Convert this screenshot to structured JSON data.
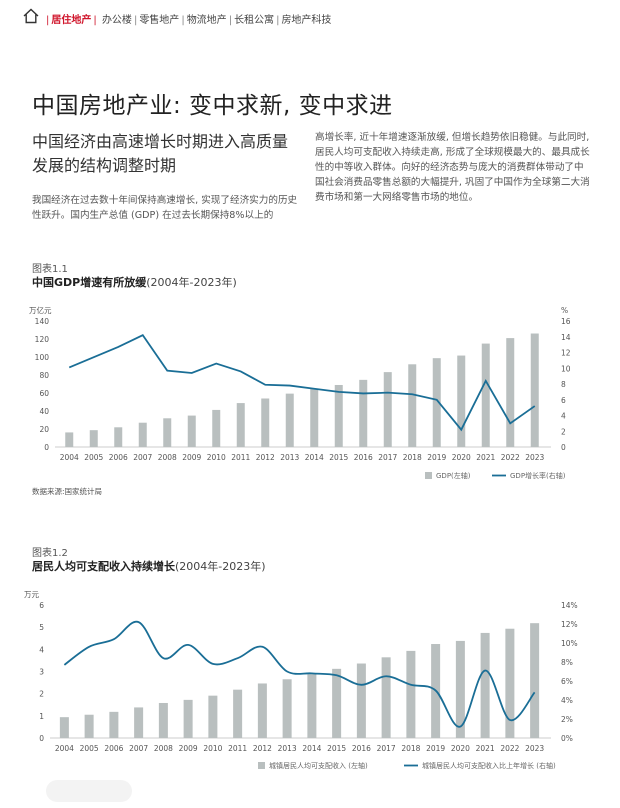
{
  "header": {
    "active": "居住地产",
    "items": [
      "办公楼",
      "零售地产",
      "物流地产",
      "长租公寓",
      "房地产科技"
    ]
  },
  "page": {
    "title": "中国房地产业: 变中求新, 变中求进",
    "subtitle": "中国经济由高速增长时期进入高质量发展的结构调整时期",
    "para1": "我国经济在过去数十年间保持高速增长, 实现了经济实力的历史性跃升。国内生产总值 (GDP) 在过去长期保持8%以上的",
    "para2": "高增长率, 近十年增速逐渐放缓, 但增长趋势依旧稳健。与此同时, 居民人均可支配收入持续走高, 形成了全球规模最大的、最具成长性的中等收入群体。向好的经济态势与庞大的消费群体带动了中国社会消费品零售总额的大幅提升, 巩固了中国作为全球第二大消费市场和第一大网络零售市场的地位。"
  },
  "fig1": {
    "label": "图表1.1",
    "title_bold": "中国GDP增速有所放缓",
    "title_range": "(2004年-2023年)",
    "source": "数据来源:国家统计局"
  },
  "fig2": {
    "label": "图表1.2",
    "title_bold": "居民人均可支配收入持续增长",
    "title_range": "(2004年-2023年)"
  },
  "colors": {
    "bar": "#b9bfbf",
    "line": "#1a6e96",
    "accent": "#d0162c"
  },
  "chart_data": [
    {
      "type": "bar+line",
      "categories": [
        "2004",
        "2005",
        "2006",
        "2007",
        "2008",
        "2009",
        "2010",
        "2011",
        "2012",
        "2013",
        "2014",
        "2015",
        "2016",
        "2017",
        "2018",
        "2019",
        "2020",
        "2021",
        "2022",
        "2023"
      ],
      "series": [
        {
          "name": "GDP(左轴)",
          "type": "bar",
          "axis": "left",
          "values": [
            16.2,
            18.7,
            21.9,
            27.0,
            31.9,
            34.9,
            41.2,
            48.8,
            53.9,
            59.3,
            64.4,
            68.9,
            74.6,
            83.2,
            91.9,
            98.7,
            101.6,
            114.9,
            121.0,
            126.1
          ]
        },
        {
          "name": "GDP增长率(右轴)",
          "type": "line",
          "axis": "right",
          "values": [
            10.1,
            11.4,
            12.7,
            14.2,
            9.7,
            9.4,
            10.6,
            9.6,
            7.9,
            7.8,
            7.4,
            7.0,
            6.8,
            6.9,
            6.7,
            6.0,
            2.2,
            8.4,
            3.0,
            5.2
          ]
        }
      ],
      "left_axis": {
        "label": "万亿元",
        "ylim": [
          0,
          140
        ],
        "ticks": [
          "0",
          "20",
          "40",
          "60",
          "80",
          "100",
          "120",
          "140"
        ]
      },
      "right_axis": {
        "label": "%",
        "ylim": [
          0,
          16
        ],
        "ticks": [
          "0",
          "2",
          "4",
          "6",
          "8",
          "10",
          "12",
          "14",
          "16"
        ]
      },
      "grid": false,
      "legend_position": "bottom-right"
    },
    {
      "type": "bar+line",
      "categories": [
        "2004",
        "2005",
        "2006",
        "2007",
        "2008",
        "2009",
        "2010",
        "2011",
        "2012",
        "2013",
        "2014",
        "2015",
        "2016",
        "2017",
        "2018",
        "2019",
        "2020",
        "2021",
        "2022",
        "2023"
      ],
      "series": [
        {
          "name": "城镇居民人均可支配收入 (左轴)",
          "type": "bar",
          "axis": "left",
          "values": [
            0.94,
            1.05,
            1.18,
            1.38,
            1.58,
            1.72,
            1.91,
            2.18,
            2.46,
            2.65,
            2.88,
            3.12,
            3.36,
            3.64,
            3.93,
            4.24,
            4.38,
            4.74,
            4.93,
            5.18
          ]
        },
        {
          "name": "城镇居民人均可支配收入比上年增长 (右轴)",
          "type": "line",
          "axis": "right",
          "values": [
            7.7,
            9.6,
            10.4,
            12.2,
            8.4,
            9.8,
            7.8,
            8.4,
            9.6,
            7.0,
            6.8,
            6.6,
            5.6,
            6.5,
            5.6,
            5.0,
            1.2,
            7.1,
            1.9,
            4.8
          ]
        }
      ],
      "left_axis": {
        "label": "万元",
        "ylim": [
          0,
          6
        ],
        "ticks": [
          "0",
          "1",
          "2",
          "3",
          "4",
          "5",
          "6"
        ]
      },
      "right_axis": {
        "label": "",
        "ylim": [
          0,
          14
        ],
        "ticks": [
          "0%",
          "2%",
          "4%",
          "6%",
          "8%",
          "10%",
          "12%",
          "14%"
        ]
      },
      "grid": false,
      "legend_position": "bottom-right"
    }
  ]
}
